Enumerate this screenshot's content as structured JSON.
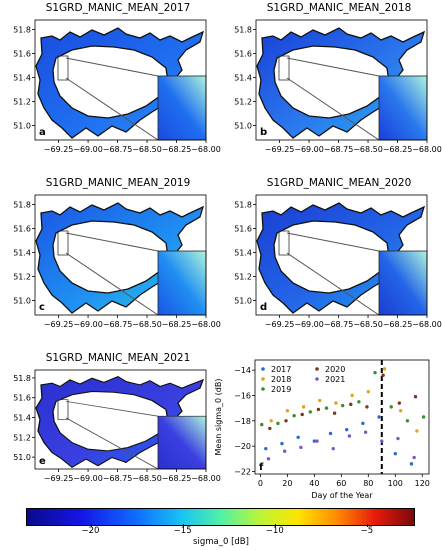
{
  "panels": [
    {
      "id": "a",
      "title": "S1GRD_MANIC_MEAN_2017",
      "letter": "a",
      "style": 0
    },
    {
      "id": "b",
      "title": "S1GRD_MANIC_MEAN_2018",
      "letter": "b",
      "style": 1
    },
    {
      "id": "c",
      "title": "S1GRD_MANIC_MEAN_2019",
      "letter": "c",
      "style": 2
    },
    {
      "id": "d",
      "title": "S1GRD_MANIC_MEAN_2020",
      "letter": "d",
      "style": 3
    },
    {
      "id": "e",
      "title": "S1GRD_MANIC_MEAN_2021",
      "letter": "e",
      "style": 4
    }
  ],
  "map_axes": {
    "x_ticks": [
      "−69.25",
      "−69.00",
      "−68.75",
      "−68.50",
      "−68.25",
      "−68.00"
    ],
    "y_ticks": [
      "51.8",
      "51.6",
      "51.4",
      "51.2",
      "51.0"
    ]
  },
  "colorbar": {
    "label": "sigma_0 [dB]",
    "ticks": [
      "−20",
      "−15",
      "−10",
      "−5"
    ],
    "tick_values": [
      -20,
      -15,
      -10,
      -5
    ],
    "range": [
      -23.5,
      -2.5
    ]
  },
  "chart_data": {
    "type": "scatter",
    "letter": "f",
    "xlabel": "Day of the Year",
    "ylabel": "Mean sigma_0 (dB)",
    "xlim": [
      -4,
      125
    ],
    "ylim": [
      -22.2,
      -13.2
    ],
    "x_ticks": [
      "0",
      "20",
      "40",
      "60",
      "80",
      "100",
      "120"
    ],
    "x_tick_values": [
      0,
      20,
      40,
      60,
      80,
      100,
      120
    ],
    "y_ticks": [
      "−14",
      "−16",
      "−18",
      "−20",
      "−22"
    ],
    "y_tick_values": [
      -14,
      -16,
      -18,
      -20,
      -22
    ],
    "vline_x": 90,
    "legend_position": "upper-left",
    "series": [
      {
        "name": "2017",
        "color": "#2b6cc4",
        "x": [
          4,
          16,
          28,
          40,
          52,
          64,
          76,
          88,
          100,
          112
        ],
        "y": [
          -20.2,
          -19.8,
          -19.3,
          -19.6,
          -19.0,
          -18.7,
          -18.2,
          -17.7,
          -20.6,
          -21.4
        ]
      },
      {
        "name": "2018",
        "color": "#e0a21c",
        "x": [
          8,
          20,
          32,
          44,
          56,
          68,
          80,
          92,
          104,
          116
        ],
        "y": [
          -18.0,
          -17.2,
          -16.9,
          -16.4,
          -16.6,
          -16.0,
          -15.7,
          -13.9,
          -17.2,
          -18.8
        ]
      },
      {
        "name": "2019",
        "color": "#3a8f2c",
        "x": [
          1,
          13,
          25,
          37,
          49,
          61,
          73,
          85,
          97,
          109,
          121
        ],
        "y": [
          -18.3,
          -18.2,
          -17.6,
          -17.3,
          -17.0,
          -16.8,
          -16.5,
          -14.2,
          -16.9,
          -18.0,
          -17.7
        ]
      },
      {
        "name": "2020",
        "color": "#7a3820",
        "x": [
          7,
          19,
          31,
          43,
          55,
          67,
          79,
          91,
          103,
          115
        ],
        "y": [
          -18.6,
          -18.0,
          -17.5,
          -17.1,
          -17.4,
          -16.7,
          -16.9,
          -14.4,
          -16.6,
          -16.1
        ]
      },
      {
        "name": "2021",
        "color": "#7b58c8",
        "x": [
          6,
          18,
          30,
          42,
          54,
          66,
          78,
          90,
          102,
          114
        ],
        "y": [
          -21.0,
          -20.4,
          -20.1,
          -19.6,
          -20.2,
          -19.2,
          -18.9,
          -19.6,
          -19.4,
          -20.9
        ]
      }
    ]
  }
}
